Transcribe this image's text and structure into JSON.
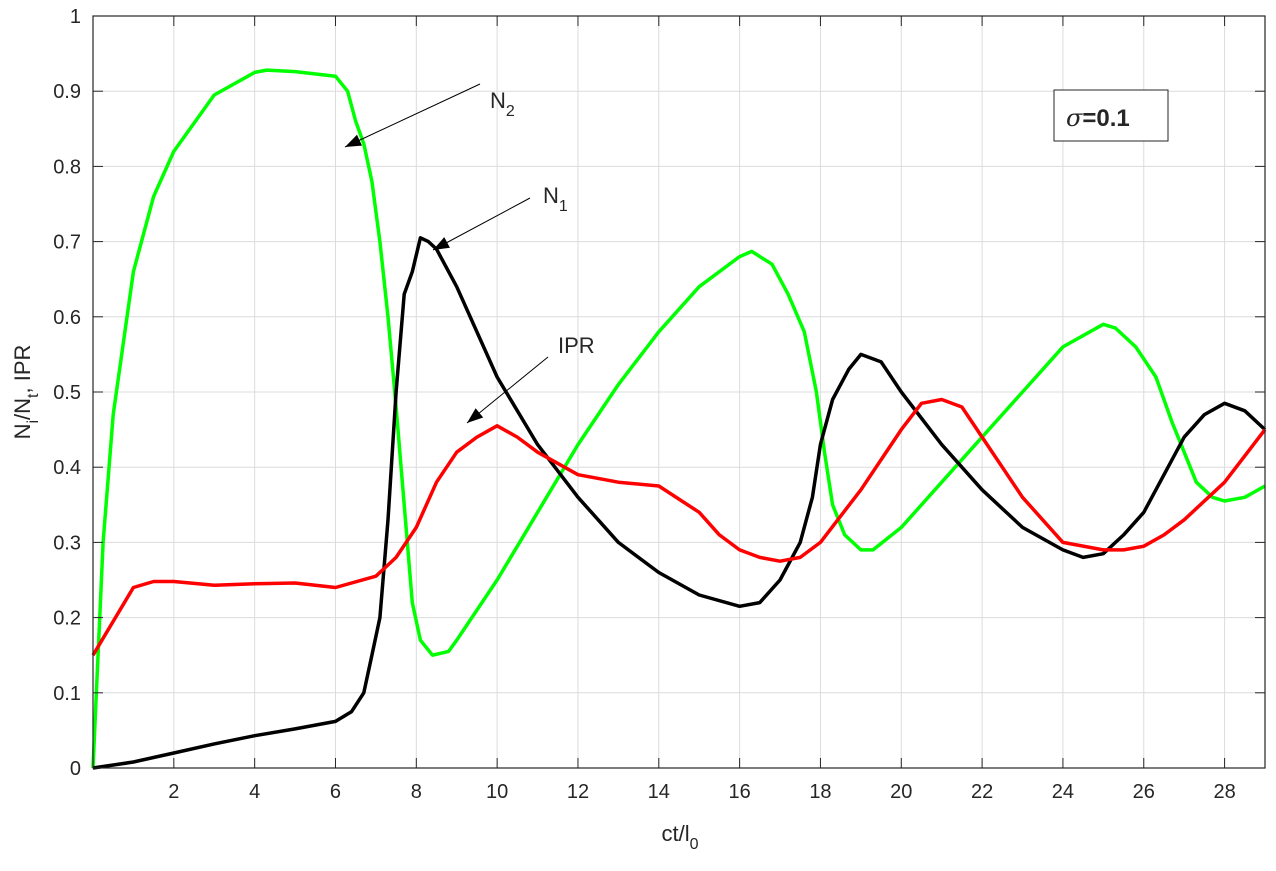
{
  "chart_data": {
    "type": "line",
    "xlabel": {
      "main": "ct/l",
      "sub": "0"
    },
    "ylabel": {
      "p1": "N",
      "s1": "i",
      "p2": "/N",
      "s2": "t",
      "p3": ", IPR"
    },
    "xlim": [
      0,
      29
    ],
    "ylim": [
      0,
      1
    ],
    "xticks": [
      2,
      4,
      6,
      8,
      10,
      12,
      14,
      16,
      18,
      20,
      22,
      24,
      26,
      28
    ],
    "yticks": [
      0,
      0.1,
      0.2,
      0.3,
      0.4,
      0.5,
      0.6,
      0.7,
      0.8,
      0.9,
      1
    ],
    "ytick_labels": [
      "0",
      "0.1",
      "0.2",
      "0.3",
      "0.4",
      "0.5",
      "0.6",
      "0.7",
      "0.8",
      "0.9",
      "1"
    ],
    "grid": true,
    "annotation_box": {
      "symbol": "σ",
      "text": "=0.1"
    },
    "series": [
      {
        "name": "N2",
        "label_main": "N",
        "label_sub": "2",
        "color": "#00ff00",
        "x": [
          0,
          0.25,
          0.5,
          1,
          1.5,
          2,
          3,
          4,
          4.3,
          5,
          6,
          6.3,
          6.5,
          6.7,
          6.9,
          7.1,
          7.3,
          7.5,
          7.7,
          7.9,
          8.1,
          8.4,
          8.8,
          9,
          10,
          11,
          12,
          13,
          14,
          15,
          16,
          16.3,
          16.8,
          17.2,
          17.6,
          17.9,
          18.1,
          18.3,
          18.6,
          19,
          19.3,
          20,
          21,
          22,
          23,
          24,
          25,
          25.3,
          25.8,
          26.3,
          26.7,
          27,
          27.3,
          27.7,
          28,
          28.5,
          29
        ],
        "y": [
          0,
          0.3,
          0.47,
          0.66,
          0.76,
          0.82,
          0.895,
          0.925,
          0.928,
          0.926,
          0.92,
          0.9,
          0.86,
          0.83,
          0.78,
          0.7,
          0.6,
          0.48,
          0.35,
          0.22,
          0.17,
          0.15,
          0.155,
          0.17,
          0.25,
          0.34,
          0.43,
          0.51,
          0.58,
          0.64,
          0.68,
          0.687,
          0.67,
          0.63,
          0.58,
          0.5,
          0.42,
          0.35,
          0.31,
          0.29,
          0.29,
          0.32,
          0.38,
          0.44,
          0.5,
          0.56,
          0.59,
          0.585,
          0.56,
          0.52,
          0.46,
          0.42,
          0.38,
          0.36,
          0.355,
          0.36,
          0.375
        ]
      },
      {
        "name": "N1",
        "label_main": "N",
        "label_sub": "1",
        "color": "#000000",
        "x": [
          0,
          1,
          2,
          3,
          4,
          5,
          6,
          6.4,
          6.7,
          6.9,
          7.1,
          7.3,
          7.5,
          7.7,
          7.9,
          8.1,
          8.3,
          8.5,
          9,
          10,
          11,
          12,
          13,
          14,
          15,
          16,
          16.5,
          17,
          17.5,
          17.8,
          18,
          18.3,
          18.7,
          19,
          19.5,
          20,
          21,
          22,
          23,
          24,
          24.5,
          25,
          25.5,
          26,
          26.5,
          27,
          27.5,
          28,
          28.5,
          29
        ],
        "y": [
          0,
          0.008,
          0.02,
          0.032,
          0.043,
          0.052,
          0.062,
          0.075,
          0.1,
          0.15,
          0.2,
          0.33,
          0.5,
          0.63,
          0.66,
          0.705,
          0.7,
          0.69,
          0.64,
          0.52,
          0.43,
          0.36,
          0.3,
          0.26,
          0.23,
          0.215,
          0.22,
          0.25,
          0.3,
          0.36,
          0.43,
          0.49,
          0.53,
          0.55,
          0.54,
          0.5,
          0.43,
          0.37,
          0.32,
          0.29,
          0.28,
          0.285,
          0.31,
          0.34,
          0.39,
          0.44,
          0.47,
          0.485,
          0.475,
          0.45
        ]
      },
      {
        "name": "IPR",
        "label_main": "IPR",
        "label_sub": "",
        "color": "#ff0000",
        "x": [
          0,
          1,
          1.5,
          2,
          3,
          4,
          5,
          6,
          7,
          7.5,
          8,
          8.5,
          9,
          9.5,
          10,
          10.5,
          11,
          12,
          13,
          14,
          15,
          15.5,
          16,
          16.5,
          17,
          17.5,
          18,
          19,
          20,
          20.5,
          21,
          21.5,
          22,
          23,
          24,
          25,
          25.5,
          26,
          26.5,
          27,
          28,
          29
        ],
        "y": [
          0.15,
          0.24,
          0.248,
          0.248,
          0.243,
          0.245,
          0.246,
          0.24,
          0.255,
          0.28,
          0.32,
          0.38,
          0.42,
          0.44,
          0.455,
          0.44,
          0.42,
          0.39,
          0.38,
          0.375,
          0.34,
          0.31,
          0.29,
          0.28,
          0.275,
          0.28,
          0.3,
          0.37,
          0.45,
          0.485,
          0.49,
          0.48,
          0.44,
          0.36,
          0.3,
          0.29,
          0.29,
          0.295,
          0.31,
          0.33,
          0.38,
          0.45
        ]
      }
    ]
  }
}
